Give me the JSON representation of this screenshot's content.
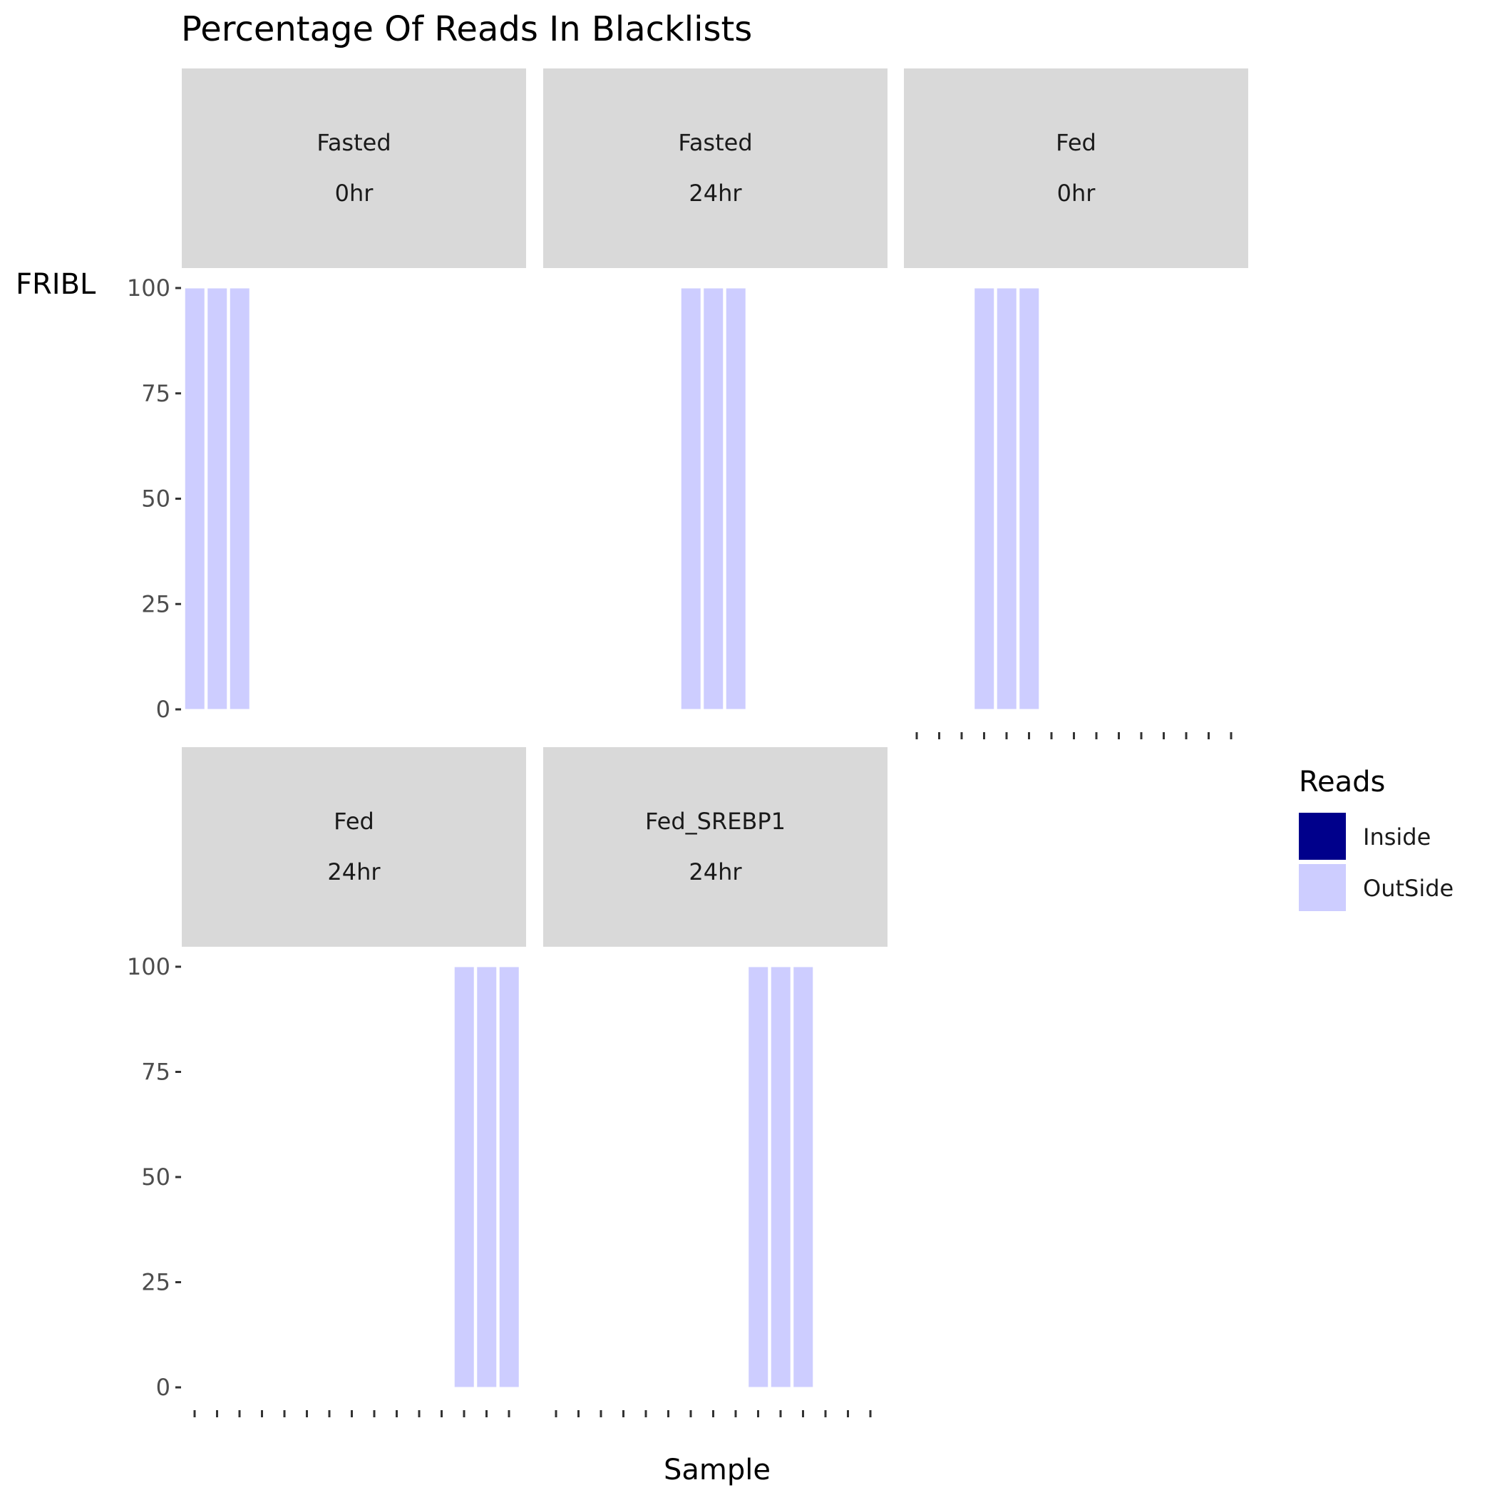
{
  "chart_data": {
    "type": "bar",
    "title": "Percentage Of Reads In Blacklists",
    "xlabel": "Sample",
    "ylabel": "FRIBL",
    "ylim": [
      0,
      100
    ],
    "yticks": [
      0,
      25,
      50,
      75,
      100
    ],
    "legend": {
      "title": "Reads",
      "position": "right",
      "entries": [
        {
          "label": "Inside",
          "color": "#00008B"
        },
        {
          "label": "OutSide",
          "color": "#CDCDFF"
        }
      ]
    },
    "panels": [
      {
        "strip": [
          "Fasted",
          "0hr"
        ],
        "bar_slots": [
          0,
          1,
          2
        ],
        "values": [
          100,
          100,
          100
        ]
      },
      {
        "strip": [
          "Fasted",
          "24hr"
        ],
        "bar_slots": [
          6,
          7,
          8
        ],
        "values": [
          100,
          100,
          100
        ]
      },
      {
        "strip": [
          "Fed",
          "0hr"
        ],
        "bar_slots": [
          3,
          4,
          5
        ],
        "values": [
          100,
          100,
          100
        ]
      },
      {
        "strip": [
          "Fed",
          "24hr"
        ],
        "bar_slots": [
          12,
          13,
          14
        ],
        "values": [
          100,
          100,
          100
        ]
      },
      {
        "strip": [
          "Fed_SREBP1",
          "24hr"
        ],
        "bar_slots": [
          9,
          10,
          11
        ],
        "values": [
          100,
          100,
          100
        ]
      }
    ],
    "x_slots": 15,
    "series": [
      {
        "name": "OutSide",
        "values_note": "all bars at 100"
      }
    ],
    "grid": false
  },
  "colors": {
    "strip_bg": "#D9D9D9",
    "outside_bar": "#CDCDFF",
    "inside_bar": "#00008B",
    "tick_text": "#4D4D4D"
  }
}
